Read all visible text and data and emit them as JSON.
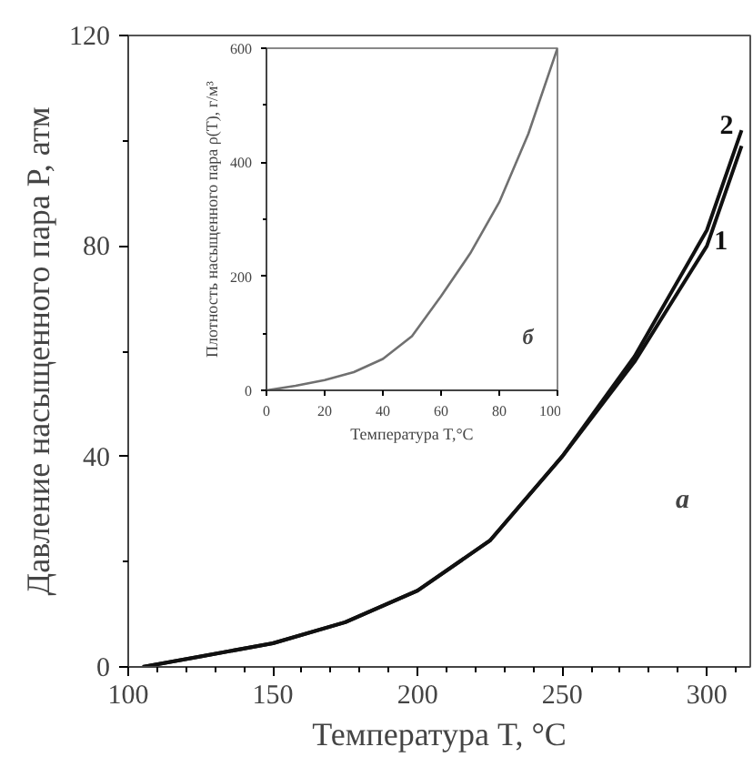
{
  "chart_data": [
    {
      "type": "line",
      "xlabel": "Температура T, °C",
      "ylabel": "Давление насыщенного пара P, атм",
      "xlim": [
        100,
        315
      ],
      "ylim": [
        0,
        120
      ],
      "xticks": [
        100,
        150,
        200,
        250,
        300
      ],
      "yticks": [
        0,
        40,
        80,
        120
      ],
      "grid": false,
      "annotations": [
        "а"
      ],
      "series": [
        {
          "name": "1",
          "color": "#111111",
          "x": [
            105,
            125,
            150,
            175,
            200,
            225,
            250,
            275,
            300,
            312
          ],
          "values": [
            0,
            2,
            4.5,
            8.5,
            14.5,
            24,
            40,
            58,
            80,
            99
          ]
        },
        {
          "name": "2",
          "color": "#111111",
          "x": [
            105,
            125,
            150,
            175,
            200,
            225,
            250,
            275,
            300,
            312
          ],
          "values": [
            0,
            2,
            4.5,
            8.5,
            14.5,
            24,
            40,
            59,
            83,
            102
          ]
        }
      ]
    },
    {
      "type": "line",
      "xlabel": "Температура T,°C",
      "ylabel": "Плотность насыщенного пара ρ(T), г/м³",
      "xlim": [
        0,
        100
      ],
      "ylim": [
        0,
        600
      ],
      "xticks": [
        0,
        20,
        40,
        60,
        80,
        100
      ],
      "yticks": [
        0,
        200,
        400,
        600
      ],
      "grid": false,
      "annotations": [
        "б"
      ],
      "series": [
        {
          "color": "#707070",
          "x": [
            0,
            10,
            20,
            30,
            40,
            50,
            60,
            70,
            80,
            90,
            100
          ],
          "values": [
            0,
            8,
            18,
            32,
            55,
            95,
            165,
            240,
            330,
            450,
            600
          ]
        }
      ]
    }
  ]
}
